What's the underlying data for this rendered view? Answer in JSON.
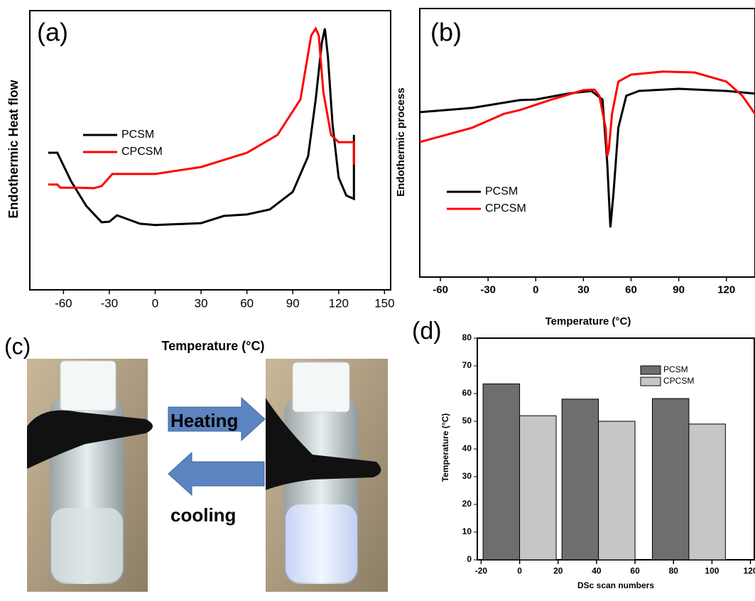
{
  "chart_data": [
    {
      "type": "line",
      "title": "(a)",
      "ylabel": "Endothermic Heat flow",
      "xlabel": "Temperature (°C)",
      "xlim": [
        -82,
        154
      ],
      "ylim": [
        0,
        100
      ],
      "xticks": [
        -60,
        -30,
        0,
        30,
        60,
        90,
        120,
        150
      ],
      "legend": "center left",
      "series": [
        {
          "name": "PCSM",
          "color": "#000000",
          "x": [
            -70,
            -64,
            -55,
            -45,
            -35,
            -30,
            -25,
            -20,
            -10,
            0,
            30,
            45,
            60,
            75,
            90,
            100,
            105,
            109,
            111,
            113,
            116,
            120,
            125,
            130,
            130
          ],
          "values": [
            49.1,
            49.1,
            38.9,
            30,
            24.2,
            24.4,
            26.7,
            25.7,
            23.7,
            23.2,
            23.9,
            26.5,
            27,
            28.8,
            35.1,
            47.8,
            68.2,
            88.5,
            93.6,
            83.5,
            59.3,
            40.2,
            33.8,
            32.6,
            55.5
          ]
        },
        {
          "name": "CPCSM",
          "color": "#ff0000",
          "x": [
            -70,
            -64,
            -62,
            -50,
            -40,
            -35,
            -28,
            -20,
            0,
            30,
            60,
            80,
            95,
            102,
            105,
            107,
            110,
            115,
            120,
            130,
            130
          ],
          "values": [
            37.7,
            37.7,
            36.6,
            36.6,
            36.4,
            37.2,
            41.5,
            41.5,
            41.5,
            44,
            49.1,
            55.5,
            68.2,
            91.1,
            93.6,
            91.1,
            70.7,
            55.5,
            52.9,
            52.9,
            44.8
          ]
        }
      ]
    },
    {
      "type": "line",
      "title": "(b)",
      "ylabel": "Endothermic process",
      "xlabel": "Temperature (°C)",
      "xlim": [
        -73,
        138
      ],
      "ylim": [
        0,
        100
      ],
      "xticks": [
        -60,
        -30,
        0,
        30,
        60,
        90,
        120
      ],
      "legend": "lower left",
      "series": [
        {
          "name": "PCSM",
          "color": "#000000",
          "x": [
            -73,
            -40,
            -10,
            0,
            20,
            35,
            42,
            45,
            47,
            49,
            52,
            57,
            65,
            90,
            120,
            138
          ],
          "values": [
            61.4,
            63,
            65.9,
            66.1,
            68.3,
            69.3,
            66.1,
            42.3,
            18.5,
            31.7,
            55.6,
            67.5,
            69.3,
            70.1,
            69.3,
            68.3
          ]
        },
        {
          "name": "CPCSM",
          "color": "#ff0000",
          "x": [
            -73,
            -40,
            -20,
            -10,
            10,
            30,
            37,
            40,
            44,
            45,
            46,
            48,
            52,
            60,
            80,
            100,
            120,
            130,
            138
          ],
          "values": [
            50.3,
            55.6,
            60.8,
            62.2,
            66.1,
            69.6,
            69.8,
            67.5,
            55.6,
            45,
            47.6,
            60.8,
            72.8,
            75.4,
            76.5,
            76.2,
            72.8,
            67.5,
            60.8
          ]
        }
      ]
    },
    {
      "type": "bar",
      "title": "(d)",
      "ylabel": "Temperature (°C)",
      "xlabel": "DSc scan numbers",
      "xlim": [
        -22,
        122
      ],
      "ylim": [
        0,
        80
      ],
      "xticks": [
        -20,
        0,
        20,
        40,
        60,
        80,
        100,
        120
      ],
      "yticks": [
        0,
        10,
        20,
        30,
        40,
        50,
        60,
        70,
        80
      ],
      "legend": "upper right",
      "bar_width": 19,
      "x": [
        0,
        41,
        88
      ],
      "series": [
        {
          "name": "PCSM",
          "color": "#6e6e6e",
          "values": [
            63.5,
            58,
            58.2
          ]
        },
        {
          "name": "CPCSM",
          "color": "#c6c6c6",
          "values": [
            52,
            50,
            49
          ]
        }
      ]
    }
  ],
  "photo_panel": {
    "label": "(c)",
    "top_arrow": "Heating",
    "bottom_arrow": "cooling"
  }
}
